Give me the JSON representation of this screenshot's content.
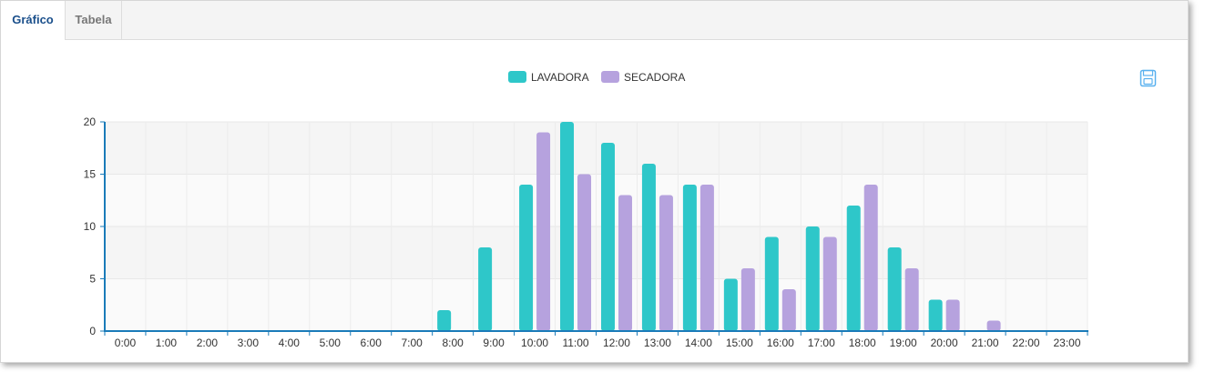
{
  "tabs": [
    {
      "label": "Gráfico",
      "active": true
    },
    {
      "label": "Tabela",
      "active": false
    }
  ],
  "toolbar": {
    "save_icon": "save-icon"
  },
  "colors": {
    "series": [
      "#2ec7c9",
      "#b6a2de"
    ],
    "axis": "#1a7bb9",
    "accent": "#1a4f8b",
    "save_icon": "#5ab1ef"
  },
  "chart_data": {
    "type": "bar",
    "categories": [
      "0:00",
      "1:00",
      "2:00",
      "3:00",
      "4:00",
      "5:00",
      "6:00",
      "7:00",
      "8:00",
      "9:00",
      "10:00",
      "11:00",
      "12:00",
      "13:00",
      "14:00",
      "15:00",
      "16:00",
      "17:00",
      "18:00",
      "19:00",
      "20:00",
      "21:00",
      "22:00",
      "23:00"
    ],
    "series": [
      {
        "name": "LAVADORA",
        "values": [
          0,
          0,
          0,
          0,
          0,
          0,
          0,
          0,
          2,
          8,
          14,
          20,
          18,
          16,
          14,
          5,
          9,
          10,
          12,
          8,
          3,
          0,
          0,
          0
        ]
      },
      {
        "name": "SECADORA",
        "values": [
          0,
          0,
          0,
          0,
          0,
          0,
          0,
          0,
          0,
          0,
          19,
          15,
          13,
          13,
          14,
          6,
          4,
          9,
          14,
          6,
          3,
          1,
          0,
          0
        ]
      }
    ],
    "ylim": [
      0,
      20
    ],
    "yticks": [
      0,
      5,
      10,
      15,
      20
    ],
    "grid": true,
    "legend_position": "top-center"
  }
}
